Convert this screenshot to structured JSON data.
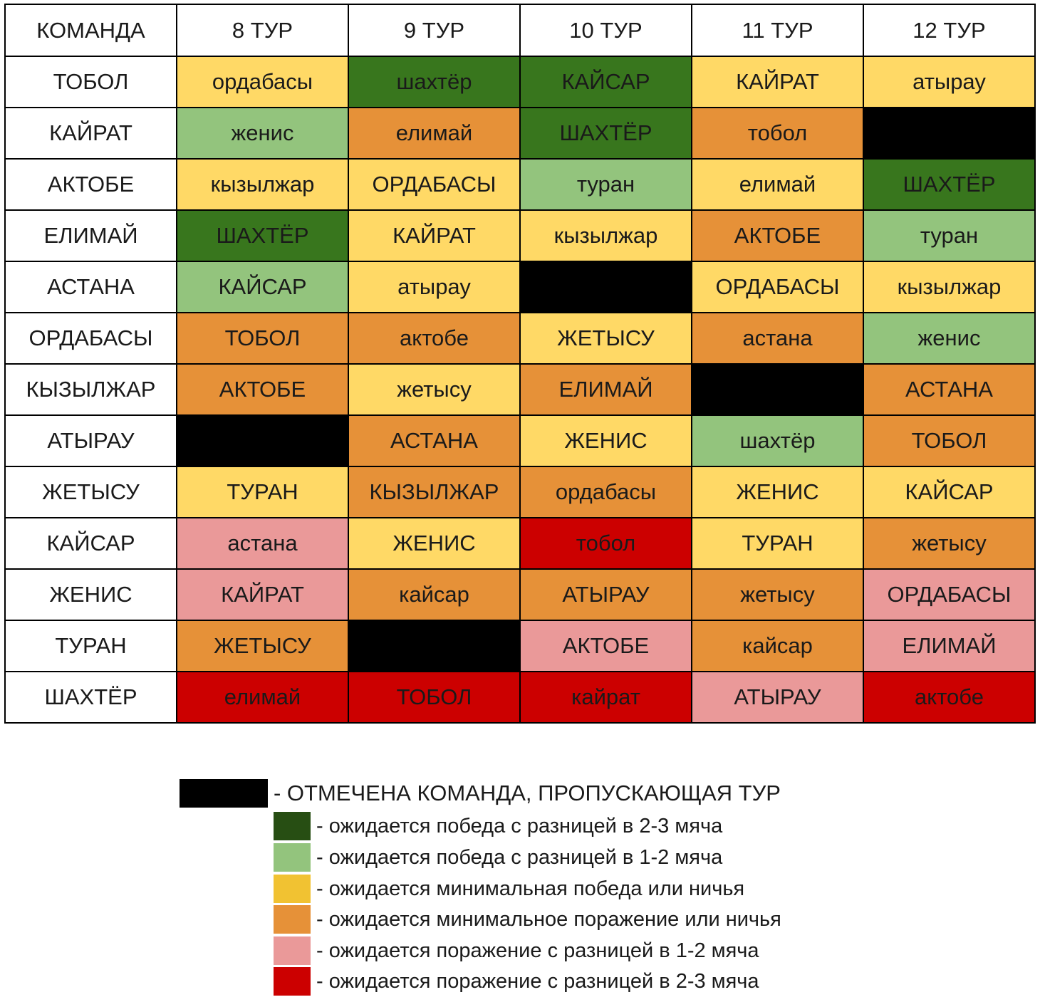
{
  "table": {
    "headers": [
      "КОМАНДА",
      "8 ТУР",
      "9 ТУР",
      "10 ТУР",
      "11 ТУР",
      "12 ТУР"
    ],
    "rows": [
      {
        "team": "ТОБОЛ",
        "cells": [
          {
            "text": "ордабасы",
            "color": "#ffd966"
          },
          {
            "text": "шахтёр",
            "color": "#38761d"
          },
          {
            "text": "КАЙСАР",
            "color": "#38761d"
          },
          {
            "text": "КАЙРАТ",
            "color": "#ffd966"
          },
          {
            "text": "атырау",
            "color": "#ffd966"
          }
        ]
      },
      {
        "team": "КАЙРАТ",
        "cells": [
          {
            "text": "женис",
            "color": "#93c47d"
          },
          {
            "text": "елимай",
            "color": "#e69138"
          },
          {
            "text": "ШАХТЁР",
            "color": "#38761d"
          },
          {
            "text": "тобол",
            "color": "#e69138"
          },
          {
            "text": "",
            "color": "#000000"
          }
        ]
      },
      {
        "team": "АКТОБЕ",
        "cells": [
          {
            "text": "кызылжар",
            "color": "#ffd966"
          },
          {
            "text": "ОРДАБАСЫ",
            "color": "#ffd966"
          },
          {
            "text": "туран",
            "color": "#93c47d"
          },
          {
            "text": "елимай",
            "color": "#ffd966"
          },
          {
            "text": "ШАХТЁР",
            "color": "#38761d"
          }
        ]
      },
      {
        "team": "ЕЛИМАЙ",
        "cells": [
          {
            "text": "ШАХТЁР",
            "color": "#38761d"
          },
          {
            "text": "КАЙРАТ",
            "color": "#ffd966"
          },
          {
            "text": "кызылжар",
            "color": "#ffd966"
          },
          {
            "text": "АКТОБЕ",
            "color": "#e69138"
          },
          {
            "text": "туран",
            "color": "#93c47d"
          }
        ]
      },
      {
        "team": "АСТАНА",
        "cells": [
          {
            "text": "КАЙСАР",
            "color": "#93c47d"
          },
          {
            "text": "атырау",
            "color": "#ffd966"
          },
          {
            "text": "",
            "color": "#000000"
          },
          {
            "text": "ОРДАБАСЫ",
            "color": "#ffd966"
          },
          {
            "text": "кызылжар",
            "color": "#ffd966"
          }
        ]
      },
      {
        "team": "ОРДАБАСЫ",
        "cells": [
          {
            "text": "ТОБОЛ",
            "color": "#e69138"
          },
          {
            "text": "актобе",
            "color": "#e69138"
          },
          {
            "text": "ЖЕТЫСУ",
            "color": "#ffd966"
          },
          {
            "text": "астана",
            "color": "#e69138"
          },
          {
            "text": "женис",
            "color": "#93c47d"
          }
        ]
      },
      {
        "team": "КЫЗЫЛЖАР",
        "cells": [
          {
            "text": "АКТОБЕ",
            "color": "#e69138"
          },
          {
            "text": "жетысу",
            "color": "#ffd966"
          },
          {
            "text": "ЕЛИМАЙ",
            "color": "#e69138"
          },
          {
            "text": "",
            "color": "#000000"
          },
          {
            "text": "АСТАНА",
            "color": "#e69138"
          }
        ]
      },
      {
        "team": "АТЫРАУ",
        "cells": [
          {
            "text": "",
            "color": "#000000"
          },
          {
            "text": "АСТАНА",
            "color": "#e69138"
          },
          {
            "text": "ЖЕНИС",
            "color": "#ffd966"
          },
          {
            "text": "шахтёр",
            "color": "#93c47d"
          },
          {
            "text": "ТОБОЛ",
            "color": "#e69138"
          }
        ]
      },
      {
        "team": "ЖЕТЫСУ",
        "cells": [
          {
            "text": "ТУРАН",
            "color": "#ffd966"
          },
          {
            "text": "КЫЗЫЛЖАР",
            "color": "#e69138"
          },
          {
            "text": "ордабасы",
            "color": "#e69138"
          },
          {
            "text": "ЖЕНИС",
            "color": "#ffd966"
          },
          {
            "text": "КАЙСАР",
            "color": "#ffd966"
          }
        ]
      },
      {
        "team": "КАЙСАР",
        "cells": [
          {
            "text": "астана",
            "color": "#ea9999"
          },
          {
            "text": "ЖЕНИС",
            "color": "#ffd966"
          },
          {
            "text": "тобол",
            "color": "#cc0000"
          },
          {
            "text": "ТУРАН",
            "color": "#ffd966"
          },
          {
            "text": "жетысу",
            "color": "#e69138"
          }
        ]
      },
      {
        "team": "ЖЕНИС",
        "cells": [
          {
            "text": "КАЙРАТ",
            "color": "#ea9999"
          },
          {
            "text": "кайсар",
            "color": "#e69138"
          },
          {
            "text": "АТЫРАУ",
            "color": "#e69138"
          },
          {
            "text": "жетысу",
            "color": "#e69138"
          },
          {
            "text": "ОРДАБАСЫ",
            "color": "#ea9999"
          }
        ]
      },
      {
        "team": "ТУРАН",
        "cells": [
          {
            "text": "ЖЕТЫСУ",
            "color": "#e69138"
          },
          {
            "text": "",
            "color": "#000000"
          },
          {
            "text": "АКТОБЕ",
            "color": "#ea9999"
          },
          {
            "text": "кайсар",
            "color": "#e69138"
          },
          {
            "text": "ЕЛИМАЙ",
            "color": "#ea9999"
          }
        ]
      },
      {
        "team": "ШАХТЁР",
        "cells": [
          {
            "text": "елимай",
            "color": "#cc0000"
          },
          {
            "text": "ТОБОЛ",
            "color": "#cc0000"
          },
          {
            "text": "кайрат",
            "color": "#cc0000"
          },
          {
            "text": "АТЫРАУ",
            "color": "#ea9999"
          },
          {
            "text": "актобе",
            "color": "#cc0000"
          }
        ]
      }
    ]
  },
  "legend": {
    "bye": {
      "text": "- ОТМЕЧЕНА КОМАНДА, ПРОПУСКАЮЩАЯ ТУР",
      "color": "#000000"
    },
    "items": [
      {
        "text": "- ожидается победа с разницей в 2-3 мяча",
        "color": "#274e13"
      },
      {
        "text": "- ожидается победа с разницей в 1-2 мяча",
        "color": "#93c47d"
      },
      {
        "text": "- ожидается минимальная победа или ничья",
        "color": "#f1c232"
      },
      {
        "text": "- ожидается минимальное поражение или ничья",
        "color": "#e69138"
      },
      {
        "text": "- ожидается поражение с разницей в 1-2 мяча",
        "color": "#ea9999"
      },
      {
        "text": "- ожидается поражение с разницей в 2-3 мяча",
        "color": "#cc0000"
      }
    ]
  }
}
